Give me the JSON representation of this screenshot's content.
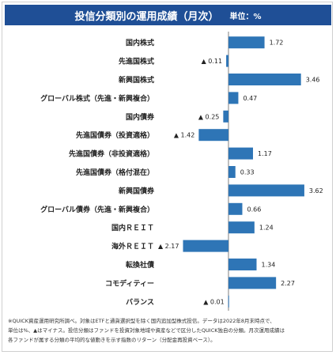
{
  "title": "投信分類別の運用成績（月次）",
  "unit": "単位：%",
  "notes": [
    "※QUICK資産運用研究所調べ。対象はETFと通貨選択型を除く国内追加型株式投信。データは2022年8月末時点で、",
    "単位は%、▲はマイナス。投信分類はファンドを投資対象地域や資産などで区分したQUICK独自の分類。月次運用成績は",
    "各ファンドが属する分類の平均的な値動きを示す指数のリターン（分配金再投資ベース）。"
  ],
  "colors": {
    "bar": "#2e75b6",
    "header": "#1f4f96",
    "zero_line": "#7f7f7f"
  },
  "chart_data": {
    "type": "bar",
    "orientation": "horizontal",
    "categories": [
      "国内株式",
      "先進国株式",
      "新興国株式",
      "グローバル株式（先進・新興複合）",
      "国内債券",
      "先進国債券（投資適格）",
      "先進国債券（非投資適格）",
      "先進国債券（格付混在）",
      "新興国債券",
      "グローバル債券（先進・新興複合）",
      "国内ＲＥＩＴ",
      "海外ＲＥＩＴ",
      "転換社債",
      "コモディティー",
      "バランス"
    ],
    "values": [
      1.72,
      -0.11,
      3.46,
      0.47,
      -0.25,
      -1.42,
      1.17,
      0.33,
      3.62,
      0.66,
      1.24,
      -2.17,
      1.34,
      2.27,
      -0.01
    ],
    "labels": [
      "1.72",
      "▲ 0.11",
      "3.46",
      "0.47",
      "▲ 0.25",
      "▲ 1.42",
      "1.17",
      "0.33",
      "3.62",
      "0.66",
      "1.24",
      "▲ 2.17",
      "1.34",
      "2.27",
      "▲ 0.01"
    ],
    "xlim": [
      -2.5,
      4.4
    ],
    "xlabel": "",
    "ylabel": "",
    "grid": false
  }
}
